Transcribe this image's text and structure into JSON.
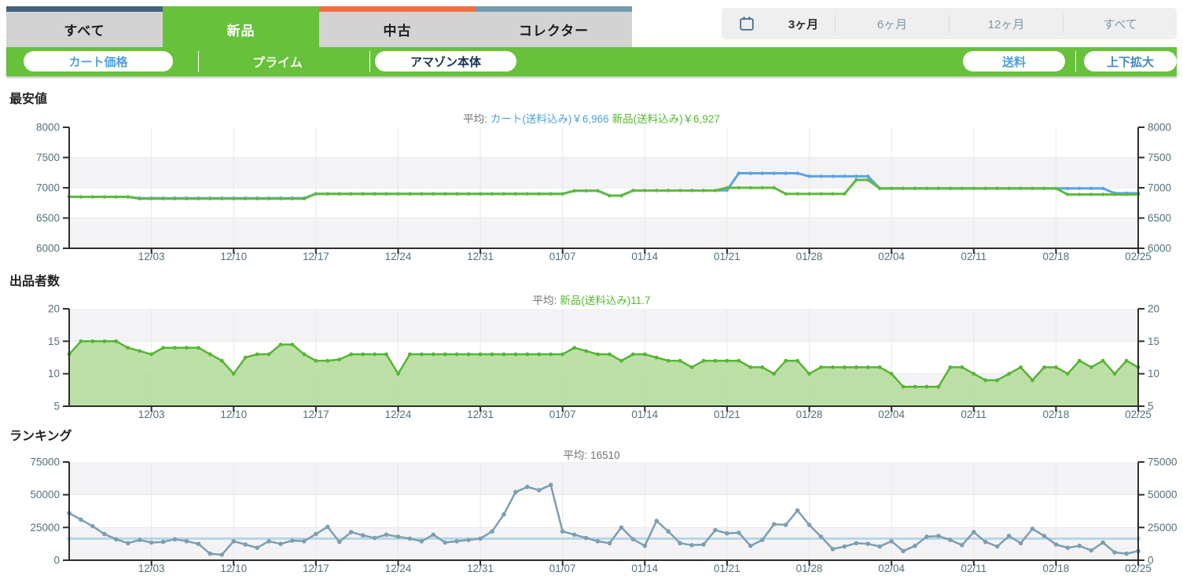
{
  "tabs": [
    {
      "label": "すべて",
      "accent": "#44617b",
      "active": false
    },
    {
      "label": "新品",
      "accent": "#67c13b",
      "active": true
    },
    {
      "label": "中古",
      "accent": "#f26d3d",
      "active": false
    },
    {
      "label": "コレクター",
      "accent": "#6f9dab",
      "active": false
    }
  ],
  "range": {
    "items": [
      "3ヶ月",
      "6ヶ月",
      "12ヶ月",
      "すべて"
    ],
    "active": "3ヶ月"
  },
  "toolbar": {
    "cart_price": "カート価格",
    "prime": "プライム",
    "amazon_direct": "アマゾン本体",
    "shipping": "送料",
    "expand": "上下拡大"
  },
  "sections": [
    "最安値",
    "出品者数",
    "ランキング"
  ],
  "colors": {
    "green_accent": "#67c13b",
    "navy_accent": "#44617b",
    "orange_accent": "#f26d3d",
    "steel_accent": "#6f9dab",
    "blue_button_text": "#4da1e0",
    "dark_button_text": "#16324c",
    "price_cart_line": "#5aa2e8",
    "price_new_line": "#5eba3e",
    "sellers_line": "#55b534",
    "sellers_fill": "#b2db97",
    "ranking_line": "#7b9fb3",
    "avg_line": "#b7d6e4",
    "band_gray": "#f3f3f5",
    "gridline": "#e8e8ea",
    "axis": "#2e2e2e",
    "axis_label": "#54707f"
  },
  "x_axis": {
    "tick_labels": [
      "12/03",
      "12/10",
      "12/17",
      "12/24",
      "12/31",
      "01/07",
      "01/14",
      "01/21",
      "01/28",
      "02/04",
      "02/11",
      "02/18",
      "02/25"
    ],
    "tick_indices": [
      7,
      14,
      21,
      28,
      35,
      42,
      49,
      56,
      63,
      70,
      77,
      84,
      91
    ],
    "start_date": "11/26",
    "end_date": "02/25"
  },
  "chart_data": [
    {
      "type": "line",
      "name": "最安値",
      "title_prefix": "平均:",
      "title_parts": [
        {
          "text": "カート(送料込み)￥6,966",
          "color": "#4da1e0"
        },
        {
          "text": "新品(送料込み)￥6,927",
          "color": "#55b82e"
        }
      ],
      "ylim": [
        6000,
        8000
      ],
      "yticks": [
        6000,
        6500,
        7000,
        7500,
        8000
      ],
      "series": [
        {
          "name": "カート(送料込み)",
          "avg": 6966,
          "color": "#5aa2e8",
          "values": [
            6850,
            6850,
            6850,
            6850,
            6850,
            6850,
            6828,
            6828,
            6828,
            6828,
            6828,
            6828,
            6828,
            6828,
            6828,
            6828,
            6828,
            6828,
            6828,
            6828,
            6828,
            6900,
            6900,
            6900,
            6900,
            6900,
            6900,
            6900,
            6900,
            6900,
            6900,
            6900,
            6900,
            6900,
            6900,
            6900,
            6900,
            6900,
            6900,
            6900,
            6900,
            6900,
            6900,
            6950,
            6950,
            6950,
            6870,
            6870,
            6955,
            6955,
            6955,
            6955,
            6955,
            6955,
            6955,
            6955,
            6960,
            7240,
            7240,
            7240,
            7240,
            7240,
            7240,
            7190,
            7190,
            7190,
            7190,
            7190,
            7190,
            6990,
            6990,
            6990,
            6990,
            6990,
            6990,
            6990,
            6990,
            6990,
            6990,
            6990,
            6990,
            6990,
            6990,
            6990,
            6990,
            6990,
            6990,
            6990,
            6990,
            6910,
            6910,
            6910
          ]
        },
        {
          "name": "新品(送料込み)",
          "avg": 6927,
          "color": "#5eba3e",
          "values": [
            6850,
            6850,
            6850,
            6850,
            6850,
            6850,
            6820,
            6820,
            6820,
            6820,
            6820,
            6820,
            6820,
            6820,
            6820,
            6820,
            6820,
            6820,
            6820,
            6820,
            6820,
            6900,
            6900,
            6900,
            6900,
            6900,
            6900,
            6900,
            6900,
            6900,
            6900,
            6900,
            6900,
            6900,
            6900,
            6900,
            6900,
            6900,
            6900,
            6900,
            6900,
            6900,
            6900,
            6950,
            6950,
            6950,
            6870,
            6870,
            6955,
            6955,
            6955,
            6955,
            6955,
            6955,
            6955,
            6955,
            7000,
            7000,
            7000,
            7000,
            7000,
            6900,
            6900,
            6900,
            6900,
            6900,
            6900,
            7130,
            7130,
            6990,
            6990,
            6990,
            6990,
            6990,
            6990,
            6990,
            6990,
            6990,
            6990,
            6990,
            6990,
            6990,
            6990,
            6990,
            6990,
            6890,
            6890,
            6890,
            6890,
            6890,
            6890,
            6890
          ]
        }
      ]
    },
    {
      "type": "area",
      "name": "出品者数",
      "title_prefix": "平均:",
      "title_parts": [
        {
          "text": "新品(送料込み)11.7",
          "color": "#55b82e"
        }
      ],
      "ylim": [
        5,
        20
      ],
      "yticks": [
        5,
        10,
        15,
        20
      ],
      "series": [
        {
          "name": "新品(送料込み)",
          "avg": 11.7,
          "color": "#55b534",
          "fill": "#b2db97",
          "values": [
            13,
            15,
            15,
            15,
            15,
            14,
            13.5,
            13,
            14,
            14,
            14,
            14,
            13,
            12,
            10,
            12.5,
            13,
            13,
            14.5,
            14.5,
            13,
            12,
            12,
            12.2,
            13,
            13,
            13,
            13,
            10,
            13,
            13,
            13,
            13,
            13,
            13,
            13,
            13,
            13,
            13,
            13,
            13,
            13,
            13,
            14,
            13.5,
            13,
            13,
            12,
            13,
            13,
            12.5,
            12,
            12,
            11,
            12,
            12,
            12,
            12,
            11,
            11,
            10,
            12,
            12,
            10,
            11,
            11,
            11,
            11,
            11,
            11,
            10,
            8,
            8,
            8,
            8,
            11,
            11,
            10,
            9,
            9,
            10,
            11,
            9,
            11,
            11,
            10,
            12,
            11,
            12,
            10,
            12,
            11
          ]
        }
      ]
    },
    {
      "type": "line",
      "name": "ランキング",
      "title_prefix": "平均:",
      "title_parts": [
        {
          "text": "16510",
          "color": "#707070"
        }
      ],
      "ylim": [
        0,
        75000
      ],
      "yticks": [
        0,
        25000,
        50000,
        75000
      ],
      "average_line": {
        "value": 16510,
        "color": "#b7d6e4"
      },
      "series": [
        {
          "name": "ランキング",
          "avg": 16510,
          "color": "#7b9fb3",
          "values": [
            36000,
            31000,
            26000,
            20000,
            16000,
            13000,
            15500,
            13500,
            14000,
            16000,
            14500,
            12500,
            5000,
            4200,
            14500,
            12000,
            9500,
            14500,
            12500,
            15000,
            14500,
            20000,
            25500,
            14000,
            21500,
            19000,
            17000,
            19500,
            18000,
            16500,
            14500,
            19500,
            13500,
            14500,
            15500,
            16500,
            22000,
            35000,
            52000,
            56000,
            53500,
            57500,
            22000,
            19500,
            17000,
            14500,
            13000,
            25000,
            16000,
            11000,
            30000,
            22000,
            13000,
            11500,
            12000,
            23000,
            20500,
            21000,
            11000,
            15500,
            27500,
            27000,
            38000,
            27000,
            18000,
            8500,
            10500,
            13000,
            12500,
            10500,
            14500,
            7000,
            11000,
            18000,
            18500,
            15500,
            11500,
            21500,
            14000,
            10500,
            18500,
            13000,
            24000,
            18500,
            12000,
            9500,
            11000,
            7500,
            13500,
            6000,
            5000,
            7000
          ]
        }
      ]
    }
  ]
}
